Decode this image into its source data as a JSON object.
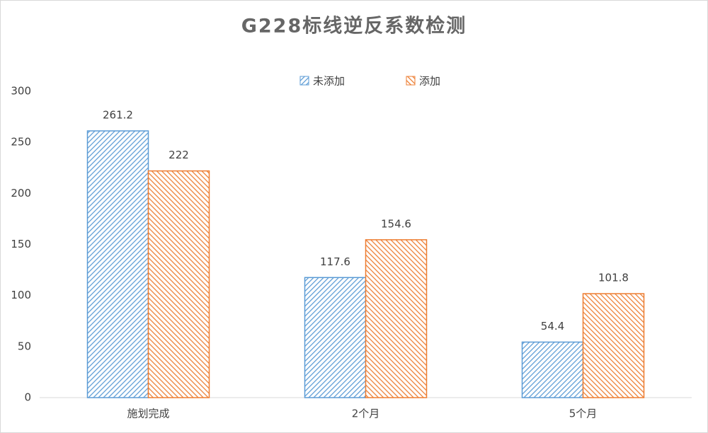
{
  "chart_data": {
    "type": "bar",
    "title": "G228标线逆反系数检测",
    "categories": [
      "施划完成",
      "2个月",
      "5个月"
    ],
    "series": [
      {
        "name": "未添加",
        "color": "#5b9bd5",
        "values": [
          261.2,
          117.6,
          54.4
        ]
      },
      {
        "name": "添加",
        "color": "#ed7d31",
        "values": [
          222,
          154.6,
          101.8
        ]
      }
    ],
    "ylim": [
      0,
      300
    ],
    "yticks": [
      0,
      50,
      100,
      150,
      200,
      250,
      300
    ],
    "grid": false,
    "legend": "top"
  }
}
